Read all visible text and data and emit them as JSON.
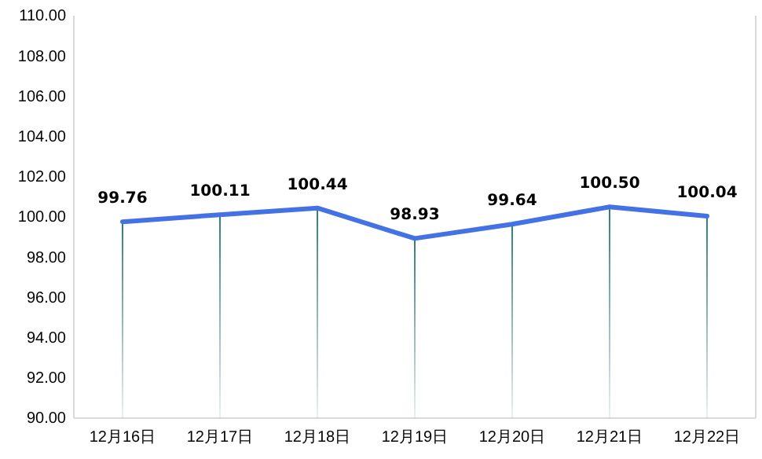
{
  "chart_data": {
    "type": "line",
    "categories": [
      "12月16日",
      "12月17日",
      "12月18日",
      "12月19日",
      "12月20日",
      "12月21日",
      "12月22日"
    ],
    "series": [
      {
        "type": "bar",
        "color": "#2e7d7a",
        "values": [
          99.76,
          100.11,
          100.44,
          98.93,
          99.64,
          100.5,
          100.04
        ]
      },
      {
        "color": "#4472e4",
        "values": [
          99.76,
          100.11,
          100.44,
          98.93,
          99.64,
          100.5,
          100.04
        ]
      }
    ],
    "ylim": [
      90,
      110
    ],
    "yticks": [
      {
        "value": 90,
        "label": "90.00"
      },
      {
        "value": 92,
        "label": "92.00"
      },
      {
        "value": 94,
        "label": "94.00"
      },
      {
        "value": 96,
        "label": "96.00"
      },
      {
        "value": 98,
        "label": "98.00"
      },
      {
        "value": 100,
        "label": "100.00"
      },
      {
        "value": 102,
        "label": "102.00"
      },
      {
        "value": 104,
        "label": "104.00"
      },
      {
        "value": 106,
        "label": "106.00"
      },
      {
        "value": 108,
        "label": "108.00"
      },
      {
        "value": 110,
        "label": "110.00"
      }
    ],
    "value_labels": [
      "99.76",
      "100.11",
      "100.44",
      "98.93",
      "99.64",
      "100.50",
      "100.04"
    ],
    "grid": false,
    "marker": "none",
    "line_style": "solid"
  }
}
